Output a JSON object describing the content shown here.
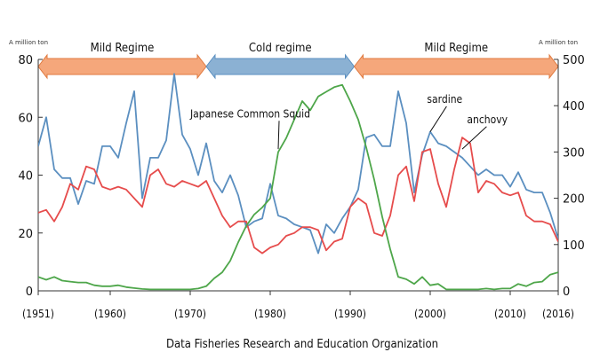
{
  "chart_data": {
    "type": "line",
    "left_unit": "A million ton",
    "right_unit": "A million ton",
    "y_left": {
      "lim": [
        0,
        80
      ],
      "ticks": [
        0,
        20,
        40,
        60,
        80
      ]
    },
    "y_right": {
      "lim": [
        0,
        500
      ],
      "ticks": [
        0,
        100,
        200,
        300,
        400,
        500
      ]
    },
    "x": {
      "lim": [
        1951,
        2016
      ],
      "ticks": [
        1951,
        1960,
        1970,
        1980,
        1990,
        2000,
        2010,
        2016
      ],
      "tick_labels": [
        "(1951)",
        "(1960)",
        "(1970)",
        "(1980)",
        "(1990)",
        "(2000)",
        "(2010)",
        "(2016)"
      ]
    },
    "regimes": [
      {
        "label": "Mild Regime",
        "start": 1951,
        "end": 1972,
        "color": "#f5a77b",
        "edge": "#e07a3f"
      },
      {
        "label": "Cold regime",
        "start": 1972,
        "end": 1990.5,
        "color": "#8bb1d3",
        "edge": "#5b8fc0"
      },
      {
        "label": "Mild Regime",
        "start": 1990.5,
        "end": 2016,
        "color": "#f5a77b",
        "edge": "#e07a3f"
      }
    ],
    "annotations": [
      {
        "text": "Japanese Common Squid",
        "tx": 1970,
        "ty": 60,
        "ax": 1981,
        "ay": 49
      },
      {
        "text": "sardine",
        "tx": 1999.6,
        "ty": 65,
        "ax": 2000,
        "ay": 55
      },
      {
        "text": "anchovy",
        "tx": 2004.6,
        "ty": 58,
        "ax": 2004,
        "ay": 49
      }
    ],
    "series": [
      {
        "color": "#5b8fc0",
        "axis": "left",
        "x": [
          1951,
          1952,
          1953,
          1954,
          1955,
          1956,
          1957,
          1958,
          1959,
          1960,
          1961,
          1962,
          1963,
          1964,
          1965,
          1966,
          1967,
          1968,
          1969,
          1970,
          1971,
          1972,
          1973,
          1974,
          1975,
          1976,
          1977,
          1978,
          1979,
          1980,
          1981,
          1982,
          1983,
          1984,
          1985,
          1986,
          1987,
          1988,
          1989,
          1990,
          1991,
          1992,
          1993,
          1994,
          1995,
          1996,
          1997,
          1998,
          1999,
          2000,
          2001,
          2002,
          2003,
          2004,
          2005,
          2006,
          2007,
          2008,
          2009,
          2010,
          2011,
          2012,
          2013,
          2014,
          2015,
          2016
        ],
        "values": [
          50,
          60,
          42,
          39,
          39,
          30,
          38,
          37,
          50,
          50,
          46,
          58,
          69,
          32,
          46,
          46,
          52,
          75,
          54,
          49,
          40,
          51,
          38,
          34,
          40,
          33,
          22,
          24,
          25,
          37,
          26,
          25,
          23,
          22,
          21,
          13,
          23,
          20,
          25,
          29,
          35,
          53,
          54,
          50,
          50,
          69,
          58,
          34,
          47,
          55,
          51,
          50,
          48,
          46,
          43,
          40,
          42,
          40,
          40,
          36,
          41,
          35,
          34,
          34,
          27,
          18
        ]
      },
      {
        "color": "#e64c4c",
        "axis": "left",
        "x": [
          1951,
          1952,
          1953,
          1954,
          1955,
          1956,
          1957,
          1958,
          1959,
          1960,
          1961,
          1962,
          1963,
          1964,
          1965,
          1966,
          1967,
          1968,
          1969,
          1970,
          1971,
          1972,
          1973,
          1974,
          1975,
          1976,
          1977,
          1978,
          1979,
          1980,
          1981,
          1982,
          1983,
          1984,
          1985,
          1986,
          1987,
          1988,
          1989,
          1990,
          1991,
          1992,
          1993,
          1994,
          1995,
          1996,
          1997,
          1998,
          1999,
          2000,
          2001,
          2002,
          2003,
          2004,
          2005,
          2006,
          2007,
          2008,
          2009,
          2010,
          2011,
          2012,
          2013,
          2014,
          2015,
          2016
        ],
        "values": [
          27,
          28,
          24,
          29,
          37,
          35,
          43,
          42,
          36,
          35,
          36,
          35,
          32,
          29,
          40,
          42,
          37,
          36,
          38,
          37,
          36,
          38,
          32,
          26,
          22,
          24,
          24,
          15,
          13,
          15,
          16,
          19,
          20,
          22,
          22,
          21,
          14,
          17,
          18,
          29,
          32,
          30,
          20,
          19,
          26,
          40,
          43,
          31,
          48,
          49,
          37,
          29,
          42,
          53,
          51,
          34,
          38,
          37,
          34,
          33,
          34,
          26,
          24,
          24,
          23,
          17
        ]
      },
      {
        "color": "#4ea64a",
        "axis": "right",
        "x": [
          1951,
          1952,
          1953,
          1954,
          1955,
          1956,
          1957,
          1958,
          1959,
          1960,
          1961,
          1962,
          1963,
          1964,
          1965,
          1966,
          1967,
          1968,
          1969,
          1970,
          1971,
          1972,
          1973,
          1974,
          1975,
          1976,
          1977,
          1978,
          1979,
          1980,
          1981,
          1982,
          1983,
          1984,
          1985,
          1986,
          1987,
          1988,
          1989,
          1990,
          1991,
          1992,
          1993,
          1994,
          1995,
          1996,
          1997,
          1998,
          1999,
          2000,
          2001,
          2002,
          2003,
          2004,
          2005,
          2006,
          2007,
          2008,
          2009,
          2010,
          2011,
          2012,
          2013,
          2014,
          2015,
          2016
        ],
        "values": [
          30,
          24,
          30,
          22,
          20,
          18,
          18,
          12,
          10,
          10,
          12,
          8,
          6,
          4,
          3,
          3,
          3,
          3,
          3,
          3,
          5,
          10,
          27,
          40,
          65,
          105,
          140,
          165,
          180,
          200,
          300,
          330,
          370,
          410,
          390,
          420,
          430,
          440,
          445,
          410,
          370,
          310,
          240,
          160,
          90,
          30,
          25,
          15,
          30,
          12,
          15,
          3,
          3,
          3,
          3,
          3,
          5,
          3,
          5,
          5,
          15,
          10,
          18,
          20,
          35,
          40
        ]
      }
    ]
  },
  "source_text": "Data Fisheries Research and Education Organization"
}
